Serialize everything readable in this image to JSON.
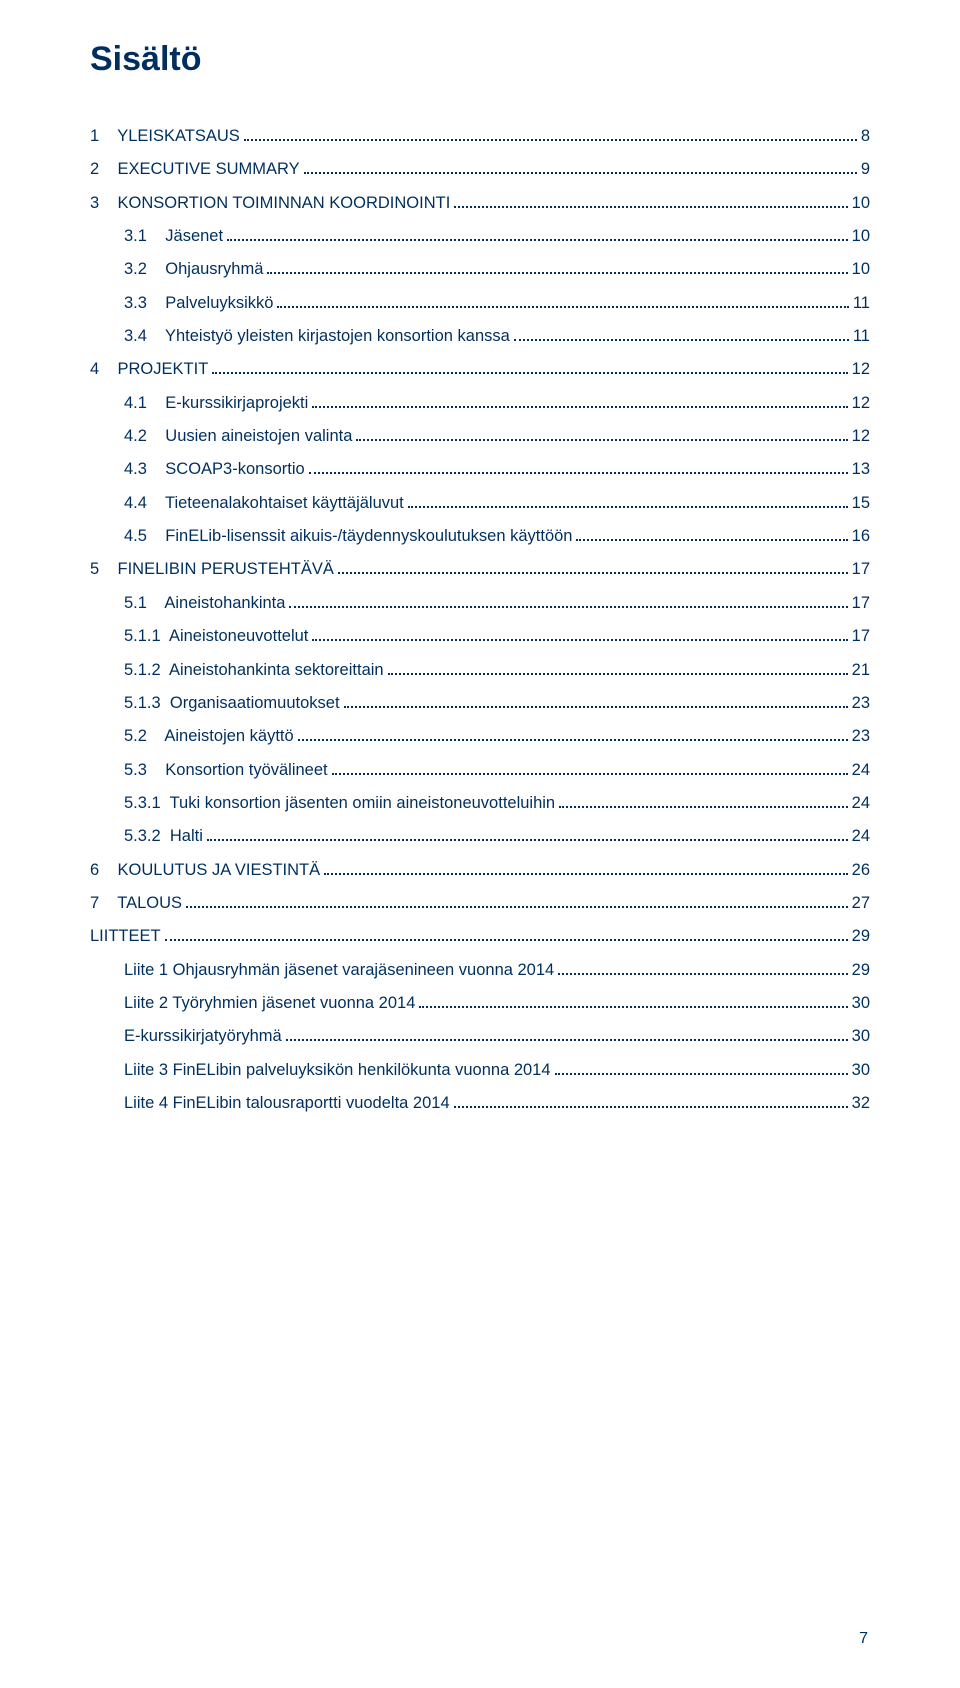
{
  "title": "Sisältö",
  "footer_page": "7",
  "colors": {
    "primary_text": "#002f5f",
    "background": "#ffffff",
    "leader": "#002f5f"
  },
  "typography": {
    "title_fontsize": 34,
    "entry_fontsize": 16.5,
    "font_family": "Arial"
  },
  "toc": [
    {
      "indent": 0,
      "label": "1    YLEISKATSAUS",
      "page": "8"
    },
    {
      "indent": 0,
      "label": "2    EXECUTIVE SUMMARY",
      "page": "9"
    },
    {
      "indent": 0,
      "label": "3    KONSORTION TOIMINNAN KOORDINOINTI",
      "page": "10"
    },
    {
      "indent": 1,
      "label": "3.1    Jäsenet",
      "page": "10"
    },
    {
      "indent": 1,
      "label": "3.2    Ohjausryhmä",
      "page": "10"
    },
    {
      "indent": 1,
      "label": "3.3    Palveluyksikkö",
      "page": "11"
    },
    {
      "indent": 1,
      "label": "3.4    Yhteistyö yleisten kirjastojen konsortion kanssa",
      "page": "11"
    },
    {
      "indent": 0,
      "label": "4    PROJEKTIT",
      "page": "12"
    },
    {
      "indent": 1,
      "label": "4.1    E-kurssikirjaprojekti",
      "page": "12"
    },
    {
      "indent": 1,
      "label": "4.2    Uusien aineistojen valinta",
      "page": "12"
    },
    {
      "indent": 1,
      "label": "4.3    SCOAP3-konsortio",
      "page": "13"
    },
    {
      "indent": 1,
      "label": "4.4    Tieteenalakohtaiset käyttäjäluvut",
      "page": "15"
    },
    {
      "indent": 1,
      "label": "4.5    FinELib-lisenssit aikuis-/täydennyskoulutuksen käyttöön",
      "page": "16"
    },
    {
      "indent": 0,
      "label": "5    FINELIBIN PERUSTEHTÄVÄ",
      "page": "17"
    },
    {
      "indent": 1,
      "label": "5.1    Aineistohankinta",
      "page": "17"
    },
    {
      "indent": 2,
      "label": "5.1.1  Aineistoneuvottelut",
      "page": "17"
    },
    {
      "indent": 2,
      "label": "5.1.2  Aineistohankinta sektoreittain",
      "page": "21"
    },
    {
      "indent": 2,
      "label": "5.1.3  Organisaatiomuutokset",
      "page": "23"
    },
    {
      "indent": 1,
      "label": "5.2    Aineistojen käyttö",
      "page": "23"
    },
    {
      "indent": 1,
      "label": "5.3    Konsortion työvälineet",
      "page": "24"
    },
    {
      "indent": 2,
      "label": "5.3.1  Tuki konsortion jäsenten omiin aineistoneuvotteluihin",
      "page": "24"
    },
    {
      "indent": 2,
      "label": "5.3.2  Halti",
      "page": "24"
    },
    {
      "indent": 0,
      "label": "6    KOULUTUS JA VIESTINTÄ",
      "page": "26"
    },
    {
      "indent": 0,
      "label": "7    TALOUS",
      "page": "27"
    },
    {
      "indent": 0,
      "label": "LIITTEET",
      "page": "29"
    },
    {
      "indent": 1,
      "label": "Liite 1 Ohjausryhmän jäsenet varajäsenineen vuonna 2014",
      "page": "29"
    },
    {
      "indent": 1,
      "label": "Liite 2 Työryhmien jäsenet vuonna 2014",
      "page": "30"
    },
    {
      "indent": 1,
      "label": "E-kurssikirjatyöryhmä",
      "page": "30"
    },
    {
      "indent": 1,
      "label": "Liite 3 FinELibin palveluyksikön henkilökunta vuonna 2014",
      "page": "30"
    },
    {
      "indent": 1,
      "label": "Liite 4 FinELibin talousraportti vuodelta 2014",
      "page": "32"
    }
  ]
}
